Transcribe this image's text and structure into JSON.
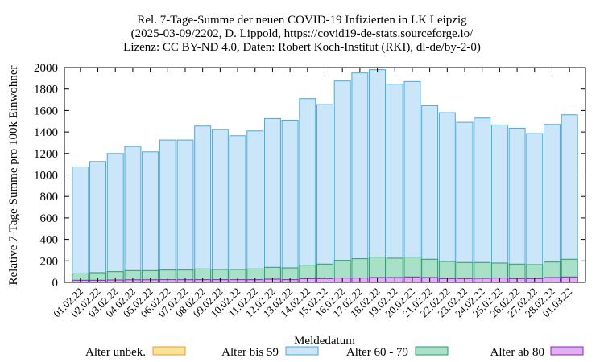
{
  "chart_data": {
    "type": "bar",
    "stacked": true,
    "title_lines": [
      "Rel. 7-Tage-Summe der neuen COVID-19 Infizierten in LK Leipzig",
      "(2025-03-09/2202, D. Lippold, https://covid19-de-stats.sourceforge.io/",
      "Lizenz: CC BY-ND 4.0, Daten: Robert Koch-Institut (RKI), dl-de/by-2-0)"
    ],
    "xlabel": "Meldedatum",
    "ylabel": "Relative 7-Tage-Summe pro 100k Einwohner",
    "ylim": [
      0,
      2000
    ],
    "yticks": [
      "0",
      "200",
      "400",
      "600",
      "800",
      "1000",
      "1200",
      "1400",
      "1600",
      "1800",
      "2000"
    ],
    "categories": [
      "01.02.22",
      "02.02.22",
      "03.02.22",
      "04.02.22",
      "05.02.22",
      "06.02.22",
      "07.02.22",
      "08.02.22",
      "09.02.22",
      "10.02.22",
      "11.02.22",
      "12.02.22",
      "13.02.22",
      "14.02.22",
      "15.02.22",
      "16.02.22",
      "17.02.22",
      "18.02.22",
      "19.02.22",
      "20.02.22",
      "21.02.22",
      "22.02.22",
      "23.02.22",
      "24.02.22",
      "25.02.22",
      "26.02.22",
      "27.02.22",
      "28.02.22",
      "01.03.22"
    ],
    "totals": [
      1075,
      1125,
      1200,
      1265,
      1215,
      1325,
      1325,
      1455,
      1425,
      1365,
      1410,
      1525,
      1510,
      1710,
      1655,
      1875,
      1950,
      1980,
      1845,
      1870,
      1645,
      1580,
      1490,
      1530,
      1465,
      1435,
      1385,
      1470,
      1560
    ],
    "series": [
      {
        "name": "Alter unbek.",
        "color": "#fde29a",
        "stroke": "#e0a020",
        "values": [
          0,
          0,
          0,
          0,
          0,
          0,
          0,
          0,
          0,
          0,
          0,
          0,
          0,
          0,
          0,
          0,
          0,
          0,
          0,
          0,
          0,
          0,
          0,
          0,
          0,
          0,
          0,
          0,
          0
        ]
      },
      {
        "name": "Alter bis 59",
        "color": "#cbe6f8",
        "stroke": "#4aa8d8",
        "values": [
          995,
          1035,
          1100,
          1155,
          1105,
          1210,
          1210,
          1330,
          1305,
          1245,
          1285,
          1385,
          1375,
          1550,
          1485,
          1670,
          1730,
          1745,
          1620,
          1635,
          1430,
          1385,
          1305,
          1345,
          1285,
          1265,
          1220,
          1280,
          1345
        ]
      },
      {
        "name": "Alter 60 - 79",
        "color": "#a8e0c8",
        "stroke": "#2e9a6a",
        "values": [
          60,
          70,
          78,
          86,
          86,
          90,
          90,
          100,
          95,
          95,
          100,
          110,
          110,
          125,
          135,
          165,
          180,
          190,
          180,
          185,
          170,
          160,
          150,
          148,
          140,
          135,
          130,
          145,
          165
        ]
      },
      {
        "name": "Alter ab 80",
        "color": "#e0b0f0",
        "stroke": "#8a20c0",
        "values": [
          20,
          20,
          22,
          24,
          24,
          25,
          25,
          25,
          25,
          25,
          25,
          30,
          25,
          35,
          35,
          40,
          40,
          45,
          45,
          50,
          45,
          35,
          35,
          37,
          40,
          35,
          35,
          45,
          50
        ]
      }
    ],
    "legend_position": "bottom",
    "grid": false
  }
}
